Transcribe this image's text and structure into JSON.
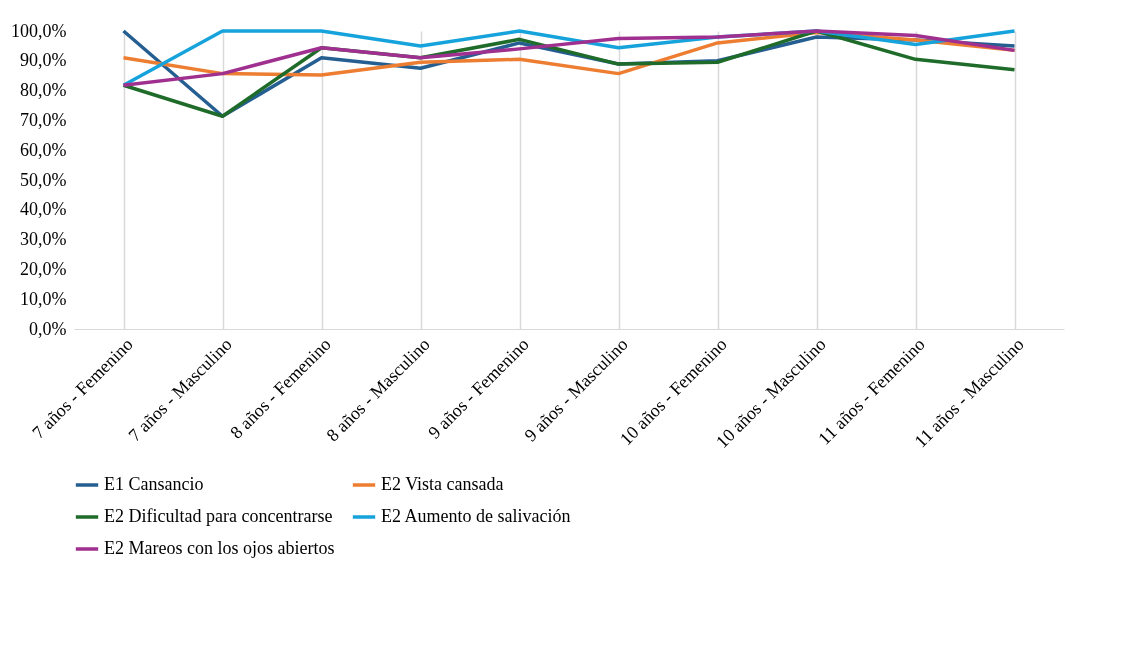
{
  "chart_data": {
    "type": "line",
    "categories": [
      "7 años - Femenino",
      "7 años - Masculino",
      "8 años - Femenino",
      "8 años - Masculino",
      "9  años - Femenino",
      "9 años - Masculino",
      "10  años - Femenino",
      "10 años - Masculino",
      "11 años - Femenino",
      "11 años - Masculino"
    ],
    "series": [
      {
        "name": "E1 Cansancio",
        "color": "#255e91",
        "values": [
          100,
          71.4,
          91,
          87.5,
          96,
          88.9,
          90,
          98,
          97,
          95
        ]
      },
      {
        "name": "E2 Vista cansada",
        "color": "#ed7d31",
        "values": [
          91,
          85.7,
          85.2,
          89.5,
          90.5,
          85.7,
          96,
          99.5,
          97,
          93.5
        ]
      },
      {
        "name": "E2 Dificultad para concentrarse",
        "color": "#1e6b2a",
        "values": [
          81.8,
          71.4,
          94.4,
          91,
          97.2,
          88.9,
          89.5,
          100,
          90.5,
          87
        ]
      },
      {
        "name": "E2 Aumento de salivación",
        "color": "#16a3dc",
        "values": [
          81.8,
          100,
          100,
          95,
          100,
          94.4,
          98,
          100,
          95.5,
          100
        ]
      },
      {
        "name": "E2 Mareos con los ojos abiertos",
        "color": "#a0308f",
        "values": [
          81.8,
          85.7,
          94.4,
          91,
          94,
          97.5,
          98,
          100,
          98.5,
          93.5
        ]
      }
    ],
    "ylim": [
      0,
      100
    ],
    "yticks": [
      {
        "value": 0,
        "label": "0,0%"
      },
      {
        "value": 10,
        "label": "10,0%"
      },
      {
        "value": 20,
        "label": "20,0%"
      },
      {
        "value": 30,
        "label": "30,0%"
      },
      {
        "value": 40,
        "label": "40,0%"
      },
      {
        "value": 50,
        "label": "50,0%"
      },
      {
        "value": 60,
        "label": "60,0%"
      },
      {
        "value": 70,
        "label": "70,0%"
      },
      {
        "value": 80,
        "label": "80,0%"
      },
      {
        "value": 90,
        "label": "90,0%"
      },
      {
        "value": 100,
        "label": "100,0%"
      }
    ],
    "grid": "x",
    "legend": "bottom",
    "marker": "none",
    "line_style": "solid"
  }
}
